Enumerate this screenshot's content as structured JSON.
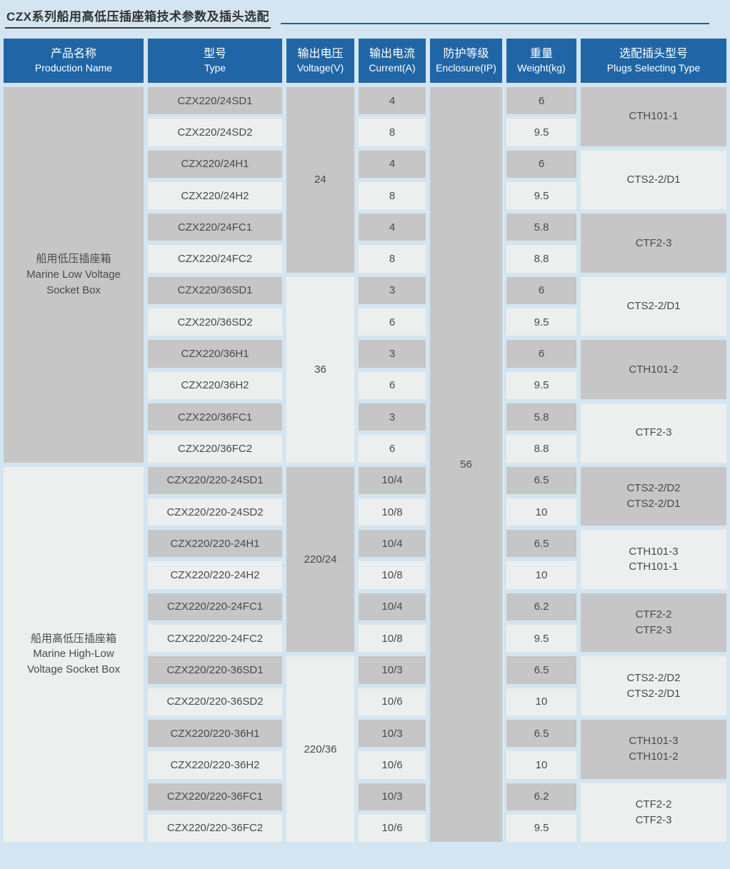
{
  "page": {
    "title": "CZX系列船用高低压插座箱技术参数及插头选配"
  },
  "colors": {
    "background": "#d3e5f1",
    "header_bg": "#2066a6",
    "header_text": "#ffffff",
    "cell_dark": "#c6c6c6",
    "cell_light": "#ecefee",
    "cell_text": "#4a4a4a",
    "title_text": "#333333",
    "title_line": "#1e5f9e"
  },
  "table": {
    "headers": [
      {
        "zh": "产品名称",
        "en": "Production Name"
      },
      {
        "zh": "型号",
        "en": "Type"
      },
      {
        "zh": "输出电压",
        "en": "Voltage(V)"
      },
      {
        "zh": "输出电流",
        "en": "Current(A)"
      },
      {
        "zh": "防护等级",
        "en": "Enclosure(IP)"
      },
      {
        "zh": "重量",
        "en": "Weight(kg)"
      },
      {
        "zh": "选配插头型号",
        "en": "Plugs Selecting Type"
      }
    ],
    "products": [
      {
        "zh": "船用低压插座箱",
        "en": [
          "Marine Low Voltage",
          "Socket Box"
        ],
        "row_span": 12,
        "shade": "dark"
      },
      {
        "zh": "船用高低压插座箱",
        "en": [
          "Marine High-Low",
          "Voltage Socket Box"
        ],
        "row_span": 12,
        "shade": "light"
      }
    ],
    "voltages": [
      {
        "label": "24",
        "row_span": 6,
        "shade": "dark"
      },
      {
        "label": "36",
        "row_span": 6,
        "shade": "light"
      },
      {
        "label": "220/24",
        "row_span": 6,
        "shade": "dark"
      },
      {
        "label": "220/36",
        "row_span": 6,
        "shade": "light"
      }
    ],
    "enclosure": {
      "label": "56",
      "row_span": 24,
      "shade": "dark"
    },
    "rows": [
      {
        "type": "CZX220/24SD1",
        "current": "4",
        "weight": "6"
      },
      {
        "type": "CZX220/24SD2",
        "current": "8",
        "weight": "9.5"
      },
      {
        "type": "CZX220/24H1",
        "current": "4",
        "weight": "6"
      },
      {
        "type": "CZX220/24H2",
        "current": "8",
        "weight": "9.5"
      },
      {
        "type": "CZX220/24FC1",
        "current": "4",
        "weight": "5.8"
      },
      {
        "type": "CZX220/24FC2",
        "current": "8",
        "weight": "8.8"
      },
      {
        "type": "CZX220/36SD1",
        "current": "3",
        "weight": "6"
      },
      {
        "type": "CZX220/36SD2",
        "current": "6",
        "weight": "9.5"
      },
      {
        "type": "CZX220/36H1",
        "current": "3",
        "weight": "6"
      },
      {
        "type": "CZX220/36H2",
        "current": "6",
        "weight": "9.5"
      },
      {
        "type": "CZX220/36FC1",
        "current": "3",
        "weight": "5.8"
      },
      {
        "type": "CZX220/36FC2",
        "current": "6",
        "weight": "8.8"
      },
      {
        "type": "CZX220/220-24SD1",
        "current": "10/4",
        "weight": "6.5"
      },
      {
        "type": "CZX220/220-24SD2",
        "current": "10/8",
        "weight": "10"
      },
      {
        "type": "CZX220/220-24H1",
        "current": "10/4",
        "weight": "6.5"
      },
      {
        "type": "CZX220/220-24H2",
        "current": "10/8",
        "weight": "10"
      },
      {
        "type": "CZX220/220-24FC1",
        "current": "10/4",
        "weight": "6.2"
      },
      {
        "type": "CZX220/220-24FC2",
        "current": "10/8",
        "weight": "9.5"
      },
      {
        "type": "CZX220/220-36SD1",
        "current": "10/3",
        "weight": "6.5"
      },
      {
        "type": "CZX220/220-36SD2",
        "current": "10/6",
        "weight": "10"
      },
      {
        "type": "CZX220/220-36H1",
        "current": "10/3",
        "weight": "6.5"
      },
      {
        "type": "CZX220/220-36H2",
        "current": "10/6",
        "weight": "10"
      },
      {
        "type": "CZX220/220-36FC1",
        "current": "10/3",
        "weight": "6.2"
      },
      {
        "type": "CZX220/220-36FC2",
        "current": "10/6",
        "weight": "9.5"
      }
    ],
    "plugs": [
      {
        "lines": [
          "CTH101-1"
        ],
        "row_span": 2,
        "shade": "dark"
      },
      {
        "lines": [
          "CTS2-2/D1"
        ],
        "row_span": 2,
        "shade": "light"
      },
      {
        "lines": [
          "CTF2-3"
        ],
        "row_span": 2,
        "shade": "dark"
      },
      {
        "lines": [
          "CTS2-2/D1"
        ],
        "row_span": 2,
        "shade": "light"
      },
      {
        "lines": [
          "CTH101-2"
        ],
        "row_span": 2,
        "shade": "dark"
      },
      {
        "lines": [
          "CTF2-3"
        ],
        "row_span": 2,
        "shade": "light"
      },
      {
        "lines": [
          "CTS2-2/D2",
          "CTS2-2/D1"
        ],
        "row_span": 2,
        "shade": "dark"
      },
      {
        "lines": [
          "CTH101-3",
          "CTH101-1"
        ],
        "row_span": 2,
        "shade": "light"
      },
      {
        "lines": [
          "CTF2-2",
          "CTF2-3"
        ],
        "row_span": 2,
        "shade": "dark"
      },
      {
        "lines": [
          "CTS2-2/D2",
          "CTS2-2/D1"
        ],
        "row_span": 2,
        "shade": "light"
      },
      {
        "lines": [
          "CTH101-3",
          "CTH101-2"
        ],
        "row_span": 2,
        "shade": "dark"
      },
      {
        "lines": [
          "CTF2-2",
          "CTF2-3"
        ],
        "row_span": 2,
        "shade": "light"
      }
    ]
  }
}
